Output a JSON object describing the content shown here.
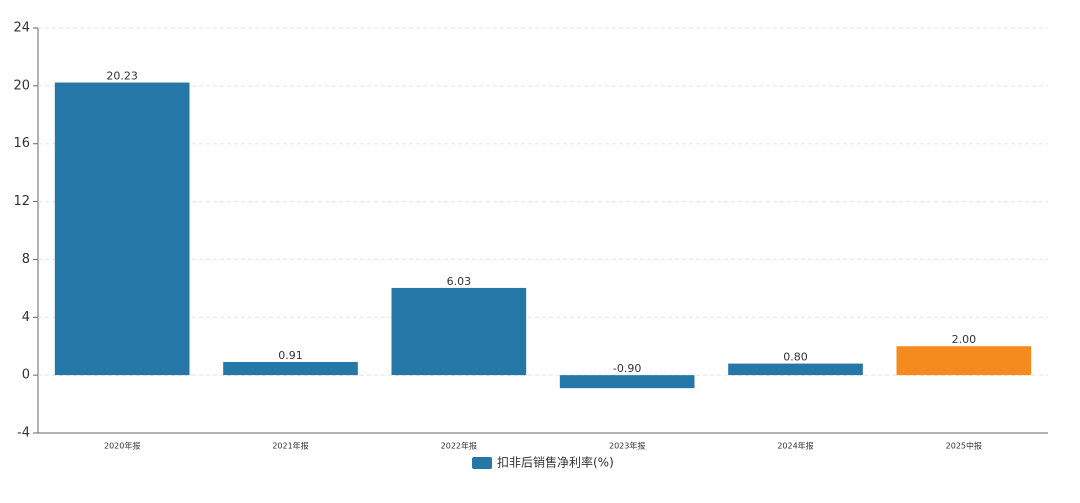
{
  "chart_data": {
    "type": "bar",
    "categories": [
      "2020年报",
      "2021年报",
      "2022年报",
      "2023年报",
      "2024年报",
      "2025中报"
    ],
    "series": [
      {
        "name": "扣非后销售净利率(%)",
        "color": "#2577a8",
        "values": [
          20.23,
          0.91,
          6.03,
          -0.9,
          0.8,
          2
        ],
        "value_labels": [
          "20.23",
          "0.91",
          "6.03",
          "-0.90",
          "0.80",
          "2.00"
        ],
        "colors": [
          "#2577a8",
          "#2577a8",
          "#2577a8",
          "#2577a8",
          "#2577a8",
          "#f58b1f"
        ]
      }
    ],
    "ylim": [
      -4,
      24
    ],
    "yticks": [
      -4,
      0,
      4,
      8,
      12,
      16,
      20,
      24
    ],
    "grid": true
  }
}
